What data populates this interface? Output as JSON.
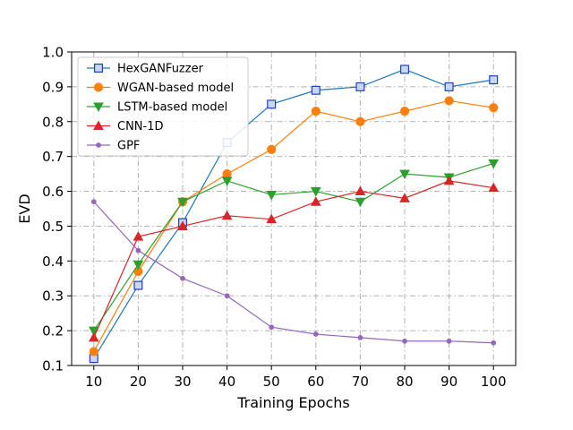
{
  "chart_data": {
    "type": "line",
    "xlabel": "Training Epochs",
    "ylabel": "EVD",
    "x": [
      10,
      20,
      30,
      40,
      50,
      60,
      70,
      80,
      90,
      100
    ],
    "xticks": [
      "10",
      "20",
      "30",
      "40",
      "50",
      "60",
      "70",
      "80",
      "90",
      "100"
    ],
    "yticks": [
      "0.1",
      "0.2",
      "0.3",
      "0.4",
      "0.5",
      "0.6",
      "0.7",
      "0.8",
      "0.9",
      "1.0"
    ],
    "xlim": [
      5,
      105
    ],
    "ylim": [
      0.1,
      1.0
    ],
    "grid": true,
    "legend_position": "top-left",
    "series": [
      {
        "name": "HexGANFuzzer",
        "color": "#1f77b4",
        "marker": "square",
        "values": [
          0.12,
          0.33,
          0.51,
          0.74,
          0.85,
          0.89,
          0.9,
          0.95,
          0.9,
          0.92
        ]
      },
      {
        "name": "WGAN-based model",
        "color": "#ff7f0e",
        "marker": "circle",
        "values": [
          0.14,
          0.37,
          0.57,
          0.65,
          0.72,
          0.83,
          0.8,
          0.83,
          0.86,
          0.84
        ]
      },
      {
        "name": "LSTM-based model",
        "color": "#2ca02c",
        "marker": "triangle-down",
        "values": [
          0.2,
          0.39,
          0.57,
          0.63,
          0.59,
          0.6,
          0.57,
          0.65,
          0.64,
          0.68
        ]
      },
      {
        "name": "CNN-1D",
        "color": "#d62728",
        "marker": "triangle-up",
        "values": [
          0.18,
          0.47,
          0.5,
          0.53,
          0.52,
          0.57,
          0.6,
          0.58,
          0.63,
          0.61
        ]
      },
      {
        "name": "GPF",
        "color": "#9467bd",
        "marker": "dot",
        "values": [
          0.57,
          0.43,
          0.35,
          0.3,
          0.21,
          0.19,
          0.18,
          0.17,
          0.17,
          0.165
        ]
      }
    ]
  }
}
